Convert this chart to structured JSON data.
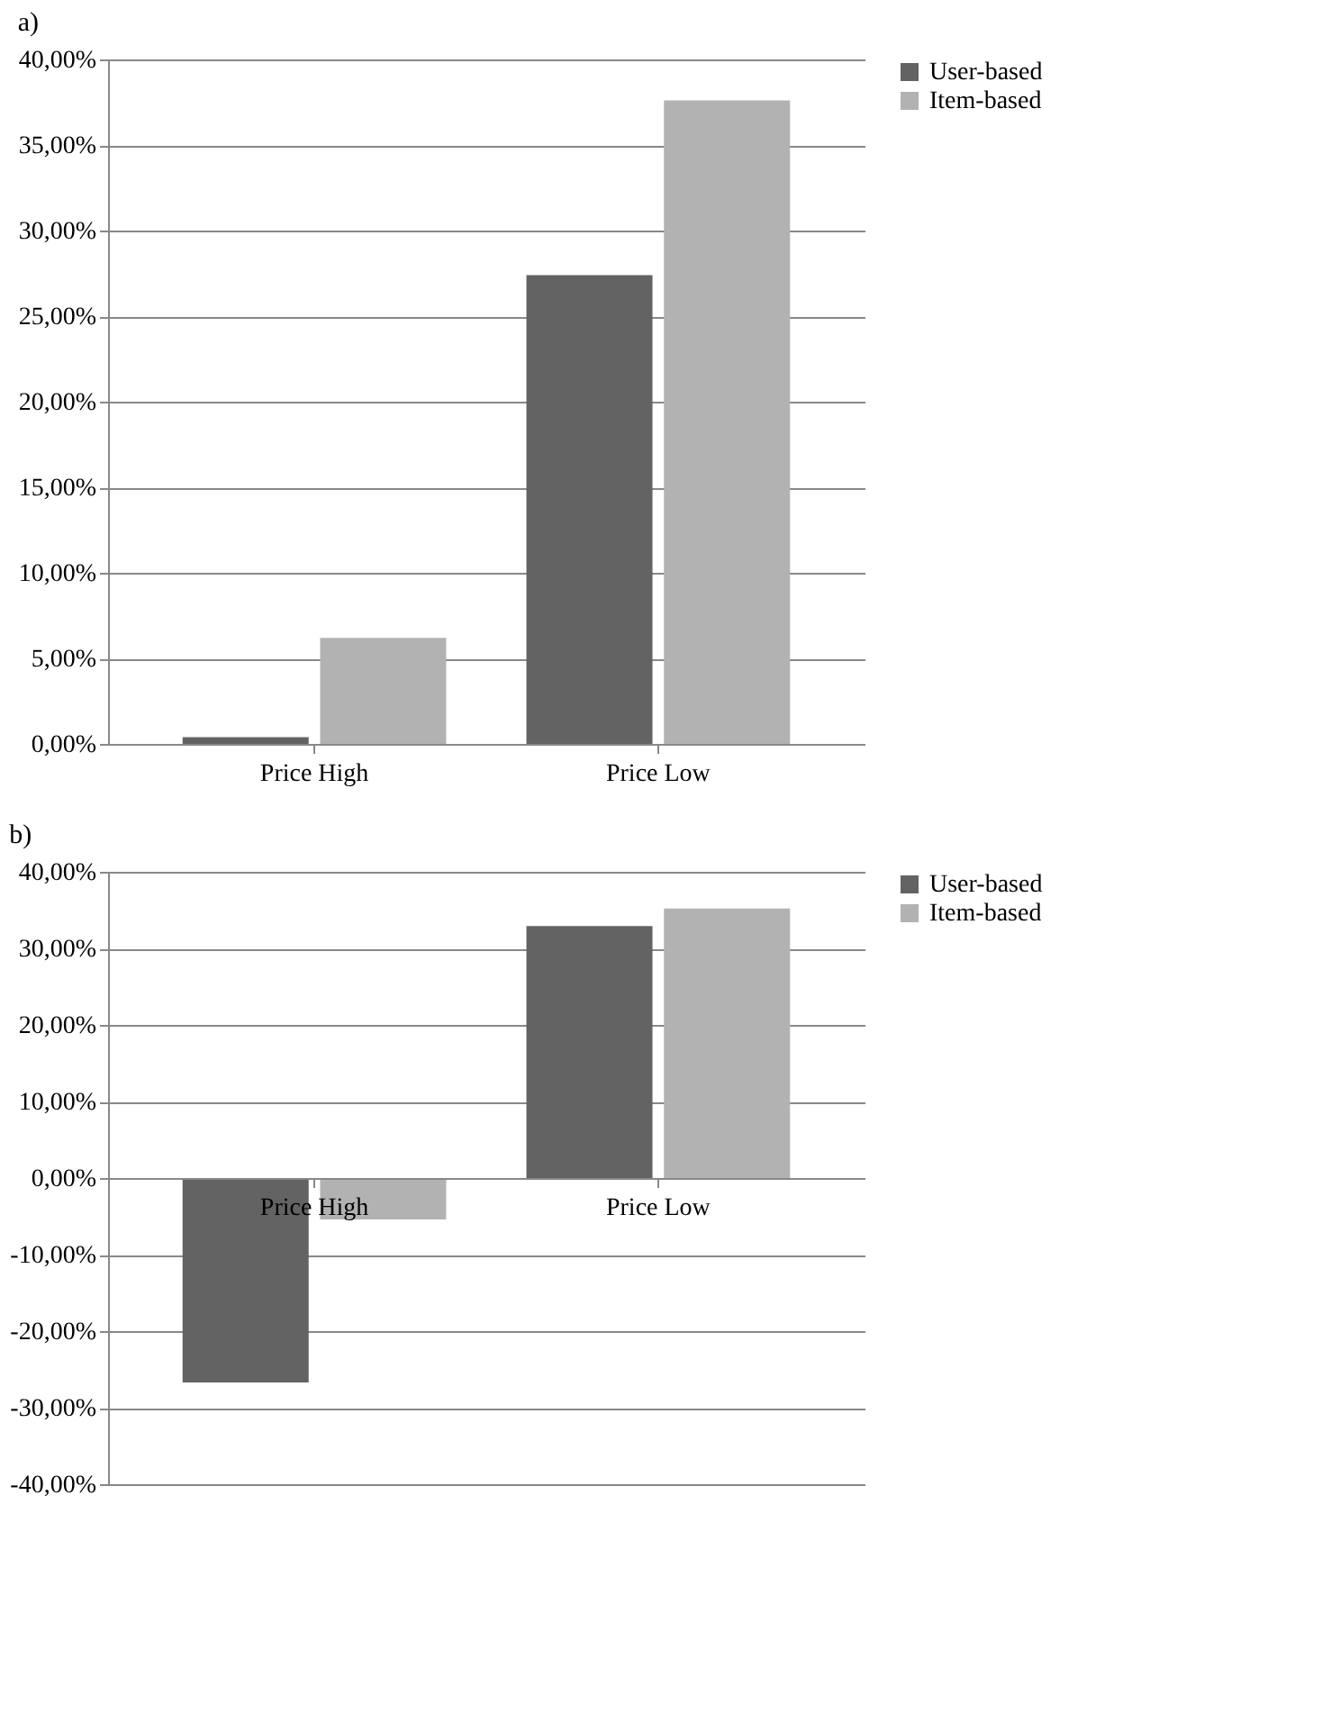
{
  "chart_data": [
    {
      "type": "bar",
      "title": "a)",
      "categories": [
        "Price High",
        "Price Low"
      ],
      "series": [
        {
          "name": "User-based",
          "color": "#636363",
          "values": [
            0.4,
            27.4
          ]
        },
        {
          "name": "Item-based",
          "color": "#b2b2b2",
          "values": [
            6.2,
            37.6
          ]
        }
      ],
      "ylim": [
        0,
        40
      ],
      "yticks": [
        {
          "value": 0,
          "label": "0,00%"
        },
        {
          "value": 5,
          "label": "5,00%"
        },
        {
          "value": 10,
          "label": "10,00%"
        },
        {
          "value": 15,
          "label": "15,00%"
        },
        {
          "value": 20,
          "label": "20,00%"
        },
        {
          "value": 25,
          "label": "25,00%"
        },
        {
          "value": 30,
          "label": "30,00%"
        },
        {
          "value": 35,
          "label": "35,00%"
        },
        {
          "value": 40,
          "label": "40,00%"
        }
      ],
      "grid": "y",
      "legend": "right"
    },
    {
      "type": "bar",
      "title": "b)",
      "categories": [
        "Price High",
        "Price Low"
      ],
      "series": [
        {
          "name": "User-based",
          "color": "#636363",
          "values": [
            -26.7,
            32.9
          ]
        },
        {
          "name": "Item-based",
          "color": "#b2b2b2",
          "values": [
            -5.4,
            35.2
          ]
        }
      ],
      "ylim": [
        -40,
        40
      ],
      "yticks": [
        {
          "value": -40,
          "label": "-40,00%"
        },
        {
          "value": -30,
          "label": "-30,00%"
        },
        {
          "value": -20,
          "label": "-20,00%"
        },
        {
          "value": -10,
          "label": "-10,00%"
        },
        {
          "value": 0,
          "label": "0,00%"
        },
        {
          "value": 10,
          "label": "10,00%"
        },
        {
          "value": 20,
          "label": "20,00%"
        },
        {
          "value": 30,
          "label": "30,00%"
        },
        {
          "value": 40,
          "label": "40,00%"
        }
      ],
      "grid": "y",
      "legend": "right"
    }
  ]
}
